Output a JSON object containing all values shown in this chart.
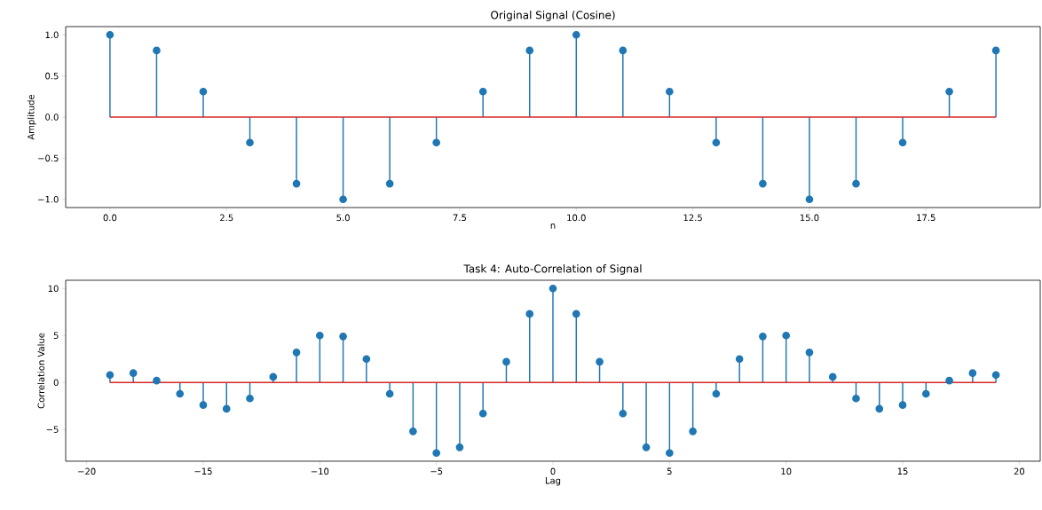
{
  "chart_data": [
    {
      "type": "lollipop",
      "title": "Original Signal (Cosine)",
      "xlabel": "n",
      "ylabel": "Amplitude",
      "color": "#1f77b4",
      "marker": "circle",
      "x": [
        0,
        1,
        2,
        3,
        4,
        5,
        6,
        7,
        8,
        9,
        10,
        11,
        12,
        13,
        14,
        15,
        16,
        17,
        18,
        19
      ],
      "values": [
        1.0,
        0.81,
        0.31,
        -0.31,
        -0.81,
        -1.0,
        -0.81,
        -0.31,
        0.31,
        0.81,
        1.0,
        0.81,
        0.31,
        -0.31,
        -0.81,
        -1.0,
        -0.81,
        -0.31,
        0.31,
        0.81
      ],
      "xlim": [
        -0.95,
        19.95
      ],
      "ylim": [
        -1.1,
        1.1
      ],
      "xticks": [
        {
          "value": 0,
          "label": "0.0"
        },
        {
          "value": 2.5,
          "label": "2.5"
        },
        {
          "value": 5,
          "label": "5.0"
        },
        {
          "value": 7.5,
          "label": "7.5"
        },
        {
          "value": 10,
          "label": "10.0"
        },
        {
          "value": 12.5,
          "label": "12.5"
        },
        {
          "value": 15,
          "label": "15.0"
        },
        {
          "value": 17.5,
          "label": "17.5"
        }
      ],
      "yticks": [
        {
          "value": -1,
          "label": "−1.0"
        },
        {
          "value": -0.5,
          "label": "−0.5"
        },
        {
          "value": 0,
          "label": "0.0"
        },
        {
          "value": 0.5,
          "label": "0.5"
        },
        {
          "value": 1,
          "label": "1.0"
        }
      ],
      "ref_lines": [
        {
          "axis": "y",
          "value": 0,
          "color": "#d62728"
        }
      ]
    },
    {
      "type": "lollipop",
      "title": "Task 4: Auto-Correlation of Signal",
      "xlabel": "Lag",
      "ylabel": "Correlation Value",
      "color": "#1f77b4",
      "marker": "circle",
      "x": [
        -19,
        -18,
        -17,
        -16,
        -15,
        -14,
        -13,
        -12,
        -11,
        -10,
        -9,
        -8,
        -7,
        -6,
        -5,
        -4,
        -3,
        -2,
        -1,
        0,
        1,
        2,
        3,
        4,
        5,
        6,
        7,
        8,
        9,
        10,
        11,
        12,
        13,
        14,
        15,
        16,
        17,
        18,
        19
      ],
      "values": [
        0.8,
        1.0,
        0.2,
        -1.2,
        -2.4,
        -2.8,
        -1.7,
        0.6,
        3.2,
        5.0,
        4.9,
        2.5,
        -1.2,
        -5.2,
        -7.5,
        -6.9,
        -3.3,
        2.2,
        7.3,
        10.0,
        7.3,
        2.2,
        -3.3,
        -6.9,
        -7.5,
        -5.2,
        -1.2,
        2.5,
        4.9,
        5.0,
        3.2,
        0.6,
        -1.7,
        -2.8,
        -2.4,
        -1.2,
        0.2,
        1.0,
        0.8
      ],
      "xlim": [
        -20.9,
        20.9
      ],
      "ylim": [
        -8.375,
        10.875
      ],
      "xticks": [
        {
          "value": -20,
          "label": "−20"
        },
        {
          "value": -15,
          "label": "−15"
        },
        {
          "value": -10,
          "label": "−10"
        },
        {
          "value": -5,
          "label": "−5"
        },
        {
          "value": 0,
          "label": "0"
        },
        {
          "value": 5,
          "label": "5"
        },
        {
          "value": 10,
          "label": "10"
        },
        {
          "value": 15,
          "label": "15"
        },
        {
          "value": 20,
          "label": "20"
        }
      ],
      "yticks": [
        {
          "value": -5,
          "label": "−5"
        },
        {
          "value": 0,
          "label": "0"
        },
        {
          "value": 5,
          "label": "5"
        },
        {
          "value": 10,
          "label": "10"
        }
      ],
      "ref_lines": [
        {
          "axis": "y",
          "value": 0,
          "color": "#d62728"
        }
      ]
    }
  ]
}
